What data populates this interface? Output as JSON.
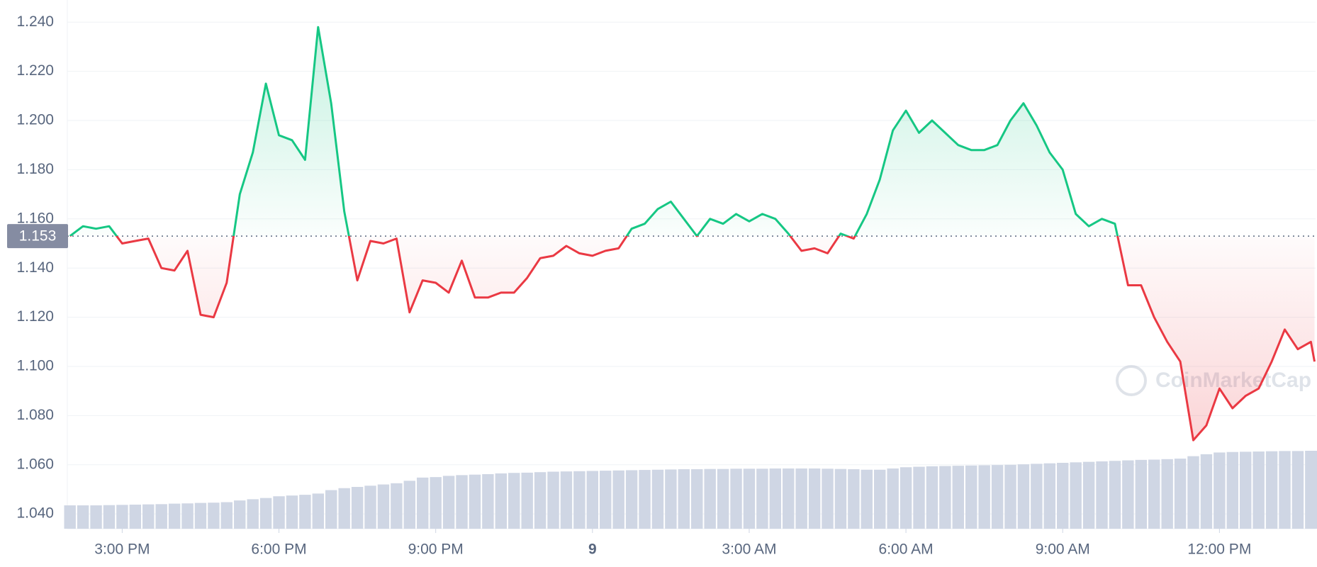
{
  "chart_data": {
    "type": "line",
    "x": [
      14.0,
      14.25,
      14.5,
      14.75,
      15.0,
      15.25,
      15.5,
      15.75,
      16.0,
      16.25,
      16.5,
      16.75,
      17.0,
      17.25,
      17.5,
      17.75,
      18.0,
      18.25,
      18.5,
      18.75,
      19.0,
      19.25,
      19.5,
      19.75,
      20.0,
      20.25,
      20.5,
      20.75,
      21.0,
      21.25,
      21.5,
      21.75,
      22.0,
      22.25,
      22.5,
      22.75,
      23.0,
      23.25,
      23.5,
      23.75,
      24.0,
      24.25,
      24.5,
      24.75,
      25.0,
      25.25,
      25.5,
      25.75,
      26.0,
      26.25,
      26.5,
      26.75,
      27.0,
      27.25,
      27.5,
      27.75,
      28.0,
      28.25,
      28.5,
      28.75,
      29.0,
      29.25,
      29.5,
      29.75,
      30.0,
      30.25,
      30.5,
      30.75,
      31.0,
      31.25,
      31.5,
      31.75,
      32.0,
      32.25,
      32.5,
      32.75,
      33.0,
      33.25,
      33.5,
      33.75,
      34.0,
      34.25,
      34.5,
      34.75,
      35.0,
      35.25,
      35.5,
      35.75,
      36.0,
      36.25,
      36.5,
      36.75,
      37.0,
      37.25,
      37.5,
      37.75,
      37.82
    ],
    "series": [
      {
        "name": "Price",
        "values": [
          1.153,
          1.157,
          1.156,
          1.157,
          1.15,
          1.151,
          1.152,
          1.14,
          1.139,
          1.147,
          1.121,
          1.12,
          1.134,
          1.17,
          1.187,
          1.215,
          1.194,
          1.192,
          1.184,
          1.238,
          1.207,
          1.163,
          1.135,
          1.151,
          1.15,
          1.152,
          1.122,
          1.135,
          1.134,
          1.13,
          1.143,
          1.128,
          1.128,
          1.13,
          1.13,
          1.136,
          1.144,
          1.145,
          1.149,
          1.146,
          1.145,
          1.147,
          1.148,
          1.156,
          1.158,
          1.164,
          1.167,
          1.16,
          1.153,
          1.16,
          1.158,
          1.162,
          1.159,
          1.162,
          1.16,
          1.154,
          1.147,
          1.148,
          1.146,
          1.154,
          1.152,
          1.162,
          1.176,
          1.196,
          1.204,
          1.195,
          1.2,
          1.195,
          1.19,
          1.188,
          1.188,
          1.19,
          1.2,
          1.207,
          1.198,
          1.187,
          1.18,
          1.162,
          1.157,
          1.16,
          1.158,
          1.133,
          1.133,
          1.12,
          1.11,
          1.102,
          1.07,
          1.076,
          1.091,
          1.083,
          1.088,
          1.091,
          1.102,
          1.115,
          1.107,
          1.11,
          1.102
        ]
      },
      {
        "name": "Volume",
        "values": [
          1.0435,
          1.0435,
          1.0435,
          1.0436,
          1.0437,
          1.0438,
          1.0439,
          1.044,
          1.0442,
          1.0443,
          1.0445,
          1.0446,
          1.0448,
          1.0455,
          1.046,
          1.0465,
          1.0472,
          1.0475,
          1.0478,
          1.0483,
          1.0497,
          1.0505,
          1.051,
          1.0515,
          1.052,
          1.0525,
          1.0535,
          1.0548,
          1.055,
          1.0555,
          1.0558,
          1.056,
          1.0562,
          1.0565,
          1.0567,
          1.0568,
          1.057,
          1.0572,
          1.0573,
          1.0574,
          1.0575,
          1.0576,
          1.0577,
          1.0578,
          1.0579,
          1.058,
          1.0581,
          1.0582,
          1.0582,
          1.0583,
          1.0583,
          1.0584,
          1.0584,
          1.0584,
          1.0585,
          1.0585,
          1.0585,
          1.0585,
          1.0584,
          1.0583,
          1.0582,
          1.058,
          1.058,
          1.0585,
          1.059,
          1.0592,
          1.0594,
          1.0595,
          1.0596,
          1.0597,
          1.0598,
          1.0599,
          1.06,
          1.0602,
          1.0604,
          1.0606,
          1.0608,
          1.061,
          1.0612,
          1.0614,
          1.0616,
          1.0618,
          1.062,
          1.0621,
          1.0623,
          1.0625,
          1.0635,
          1.0643,
          1.065,
          1.0652,
          1.0653,
          1.0654,
          1.0655,
          1.0656,
          1.0656,
          1.0657,
          1.0657
        ]
      }
    ],
    "baseline": 1.153,
    "up_color": "#16c784",
    "down_color": "#ea3943",
    "volume_color": "#cfd6e4",
    "xlim": [
      13.95,
      37.84
    ],
    "ylim": [
      1.034,
      1.249
    ],
    "xticks": [
      {
        "value": 15,
        "label": "3:00 PM"
      },
      {
        "value": 18,
        "label": "6:00 PM"
      },
      {
        "value": 21,
        "label": "9:00 PM"
      },
      {
        "value": 24,
        "label": "9"
      },
      {
        "value": 27,
        "label": "3:00 AM"
      },
      {
        "value": 30,
        "label": "6:00 AM"
      },
      {
        "value": 33,
        "label": "9:00 AM"
      },
      {
        "value": 36,
        "label": "12:00 PM"
      }
    ],
    "yticks": [
      {
        "value": 1.04,
        "label": "1.040"
      },
      {
        "value": 1.06,
        "label": "1.060"
      },
      {
        "value": 1.08,
        "label": "1.080"
      },
      {
        "value": 1.1,
        "label": "1.100"
      },
      {
        "value": 1.12,
        "label": "1.120"
      },
      {
        "value": 1.14,
        "label": "1.140"
      },
      {
        "value": 1.16,
        "label": "1.160"
      },
      {
        "value": 1.18,
        "label": "1.180"
      },
      {
        "value": 1.2,
        "label": "1.200"
      },
      {
        "value": 1.22,
        "label": "1.220"
      },
      {
        "value": 1.24,
        "label": "1.240"
      }
    ],
    "baseline_label": "1.153",
    "grid": true,
    "watermark": "CoinMarketCap"
  }
}
